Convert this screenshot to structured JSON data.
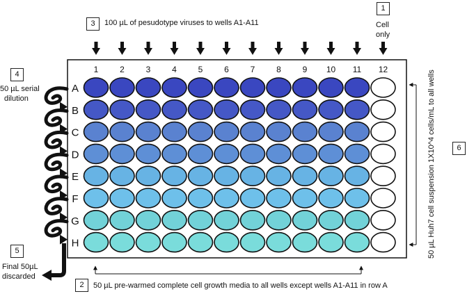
{
  "steps": {
    "step1": {
      "number": "1",
      "text_line1": "Cell",
      "text_line2": "only"
    },
    "step2": {
      "number": "2",
      "text": "50 µL pre-warmed complete cell growth media to all wells except wells A1-A11 in row A"
    },
    "step3": {
      "number": "3",
      "text": "100 µL of pesudotype viruses to wells A1-A11"
    },
    "step4": {
      "number": "4",
      "text_line1": "50 µL serial",
      "text_line2": "dilution"
    },
    "step5": {
      "number": "5",
      "text_line1": "Final 50µL",
      "text_line2": "discarded"
    },
    "step6": {
      "number": "6",
      "text": "50 µL Huh7 cell suspension 1X10^4 cells/mL to all wells"
    }
  },
  "plate": {
    "columns": [
      "1",
      "2",
      "3",
      "4",
      "5",
      "6",
      "7",
      "8",
      "9",
      "10",
      "11",
      "12"
    ],
    "rows": [
      {
        "label": "A",
        "fill": "#3a47c0"
      },
      {
        "label": "B",
        "fill": "#4558c6"
      },
      {
        "label": "C",
        "fill": "#5a82d0"
      },
      {
        "label": "D",
        "fill": "#5e8fd6"
      },
      {
        "label": "E",
        "fill": "#67b3e4"
      },
      {
        "label": "F",
        "fill": "#6ec0ea"
      },
      {
        "label": "G",
        "fill": "#72d2d8"
      },
      {
        "label": "H",
        "fill": "#7adcdb"
      }
    ],
    "empty_column": "12",
    "empty_fill": "#ffffff"
  }
}
